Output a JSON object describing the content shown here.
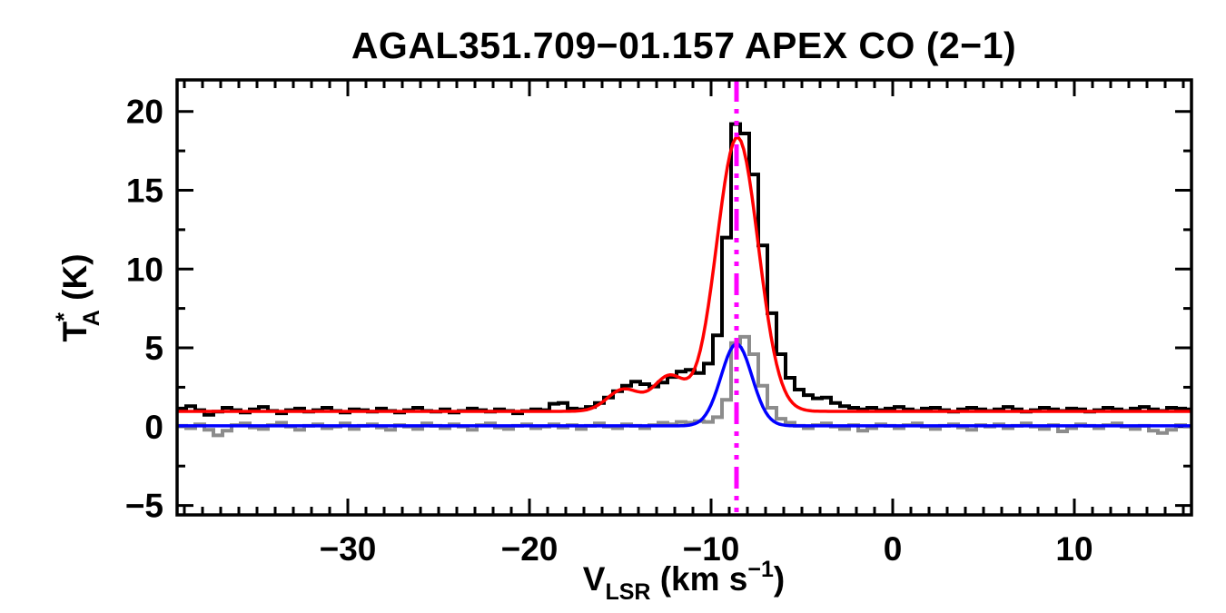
{
  "title": "AGAL351.709−01.157  APEX CO (2−1)",
  "labels": {
    "title": "AGAL351.709−01.157  APEX CO (2−1)",
    "ylabel_main": "T",
    "ylabel_sup": "*",
    "ylabel_sub": "A",
    "ylabel_rest": " (K)",
    "xlabel_main": "V",
    "xlabel_sub": "LSR",
    "xlabel_mid": " (km s",
    "xlabel_sup": "−1",
    "xlabel_end": ")"
  },
  "colors": {
    "frame": "#000000",
    "observed_spectrum": "#000000",
    "second_spectrum": "#8c8c8c",
    "fit_observed": "#ff0000",
    "fit_second": "#0000ff",
    "velocity_marker": "#ff00ff",
    "background": "#ffffff"
  },
  "chart_data": {
    "type": "line",
    "title": "AGAL351.709−01.157  APEX CO (2−1)",
    "xlabel": "V_LSR (km s−1)",
    "ylabel": "T*_A (K)",
    "xlim": [
      -39.4,
      16.45
    ],
    "ylim": [
      -5.6,
      22.0
    ],
    "grid": false,
    "legend": "none",
    "x_major_ticks": [
      -30,
      -20,
      -10,
      0,
      10
    ],
    "x_tick_labels": [
      "−30",
      "−20",
      "−10",
      "0",
      "10"
    ],
    "x_minor_step": 1,
    "y_major_ticks": [
      -5,
      0,
      5,
      10,
      15,
      20
    ],
    "y_tick_labels": [
      "−5",
      "0",
      "5",
      "10",
      "15",
      "20"
    ],
    "y_minor_step": 2.5,
    "vline": {
      "x": -8.6,
      "color": "#ff00ff",
      "linestyle": "dash-dot-dot-dot"
    },
    "series": [
      {
        "name": "observed-co-spectrum",
        "style": "histogram",
        "color": "#000000",
        "x_start": -39.4,
        "dx": 0.5,
        "values": [
          1.15,
          1.3,
          1.05,
          0.75,
          0.95,
          1.2,
          1.05,
          0.9,
          1.1,
          1.25,
          1.0,
          0.85,
          1.05,
          1.15,
          0.95,
          1.05,
          1.2,
          1.0,
          0.9,
          1.1,
          1.05,
          0.95,
          1.15,
          1.0,
          0.9,
          1.05,
          1.2,
          1.0,
          0.95,
          1.1,
          0.9,
          1.0,
          1.15,
          1.05,
          0.95,
          1.1,
          1.0,
          0.85,
          1.0,
          1.1,
          1.05,
          1.45,
          1.5,
          1.15,
          1.1,
          1.25,
          1.5,
          1.85,
          2.25,
          2.6,
          2.85,
          2.7,
          2.55,
          2.8,
          3.15,
          3.5,
          3.6,
          3.4,
          4.0,
          5.8,
          12.0,
          19.2,
          18.6,
          16.0,
          11.5,
          7.2,
          4.6,
          3.1,
          2.35,
          2.0,
          1.8,
          1.85,
          1.5,
          1.3,
          1.2,
          1.1,
          1.2,
          1.05,
          1.15,
          1.25,
          1.1,
          1.0,
          1.15,
          1.2,
          1.05,
          0.95,
          1.1,
          1.2,
          1.1,
          1.0,
          1.1,
          1.25,
          1.1,
          0.95,
          1.05,
          1.2,
          1.1,
          1.0,
          1.15,
          1.1,
          0.95,
          1.05,
          1.2,
          1.1,
          1.0,
          1.15,
          1.25,
          1.1,
          1.0,
          1.2,
          1.15,
          1.1
        ]
      },
      {
        "name": "second-component-spectrum",
        "style": "histogram",
        "color": "#8c8c8c",
        "x_start": -39.4,
        "dx": 0.5,
        "values": [
          0.05,
          -0.1,
          0.15,
          -0.2,
          -0.55,
          -0.25,
          0.1,
          0.2,
          -0.05,
          -0.15,
          0.1,
          0.25,
          0.0,
          -0.2,
          0.05,
          0.15,
          -0.1,
          0.0,
          0.2,
          -0.15,
          0.05,
          0.15,
          -0.05,
          -0.2,
          0.1,
          0.0,
          -0.15,
          0.2,
          0.05,
          -0.1,
          0.15,
          0.0,
          -0.2,
          0.1,
          0.2,
          -0.05,
          -0.15,
          0.05,
          0.15,
          -0.1,
          0.0,
          0.15,
          -0.05,
          0.1,
          -0.15,
          0.05,
          0.2,
          0.0,
          -0.1,
          0.15,
          0.05,
          -0.1,
          0.1,
          0.25,
          0.15,
          0.3,
          0.25,
          0.35,
          0.3,
          0.6,
          1.7,
          5.3,
          5.7,
          4.6,
          2.6,
          1.2,
          0.5,
          0.25,
          0.05,
          -0.1,
          0.1,
          0.2,
          0.0,
          -0.15,
          0.1,
          -0.25,
          -0.1,
          0.15,
          0.05,
          -0.1,
          0.1,
          0.2,
          0.0,
          -0.15,
          0.05,
          0.15,
          -0.05,
          -0.2,
          0.1,
          0.0,
          0.15,
          -0.1,
          0.05,
          0.2,
          0.0,
          -0.15,
          0.1,
          -0.3,
          -0.1,
          0.15,
          0.05,
          -0.1,
          0.1,
          0.2,
          0.0,
          -0.15,
          0.05,
          -0.25,
          -0.4,
          -0.2,
          0.1,
          0.0
        ]
      },
      {
        "name": "gaussian-fit-observed",
        "style": "model",
        "color": "#ff0000",
        "baseline": 0.97,
        "components": [
          {
            "amp": 1.4,
            "center": -14.8,
            "sigma": 0.9
          },
          {
            "amp": 2.2,
            "center": -12.3,
            "sigma": 0.85
          },
          {
            "amp": 17.4,
            "center": -8.55,
            "sigma": 1.15
          }
        ]
      },
      {
        "name": "gaussian-fit-second",
        "style": "model",
        "color": "#0000ff",
        "baseline": 0.05,
        "components": [
          {
            "amp": 5.2,
            "center": -8.6,
            "sigma": 0.85
          }
        ]
      }
    ]
  }
}
